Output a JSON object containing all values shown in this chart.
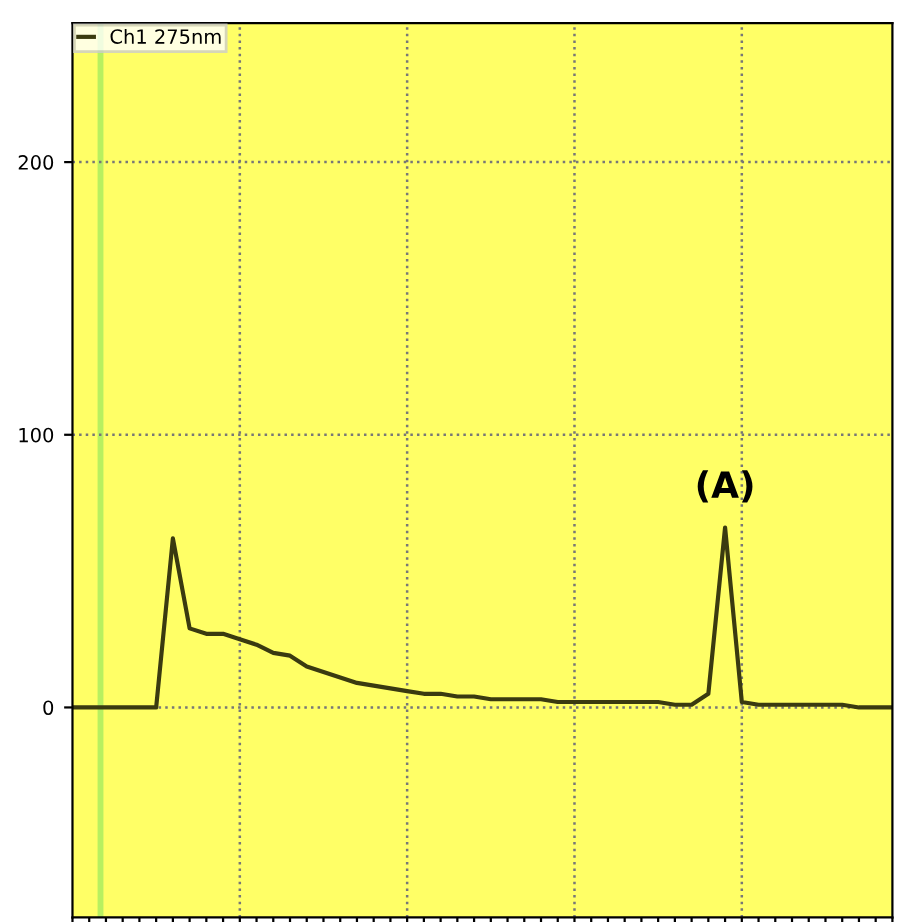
{
  "chart_data": {
    "type": "line",
    "legend": "top left",
    "grid": true,
    "line_style": "solid",
    "marker": "none",
    "categories": [
      null,
      null,
      null,
      null,
      null,
      null,
      null,
      null,
      null,
      null,
      null,
      null,
      null,
      null,
      null,
      null,
      null,
      null,
      null,
      null,
      null,
      null,
      null,
      null,
      null,
      null,
      null,
      null,
      null,
      null,
      null,
      null,
      null,
      null,
      null,
      null,
      null,
      null,
      null,
      null,
      null,
      null,
      null,
      null,
      null,
      null,
      null,
      null,
      null,
      null
    ],
    "series": [
      {
        "name": "Ch1 275nm",
        "color": "#3a3a10",
        "values": [
          0,
          0,
          0,
          0,
          0,
          0,
          62,
          29,
          27,
          27,
          25,
          23,
          20,
          19,
          15,
          13,
          11,
          9,
          8,
          7,
          6,
          5,
          5,
          4,
          4,
          3,
          3,
          3,
          3,
          2,
          2,
          2,
          2,
          2,
          2,
          2,
          1,
          1,
          5,
          66,
          2,
          1,
          1,
          1,
          1,
          1,
          1,
          0,
          0,
          0
        ]
      }
    ],
    "ylim": [
      -77,
      251
    ],
    "yticks": [
      0,
      100,
      200
    ],
    "annotations": [
      {
        "text": "(A)",
        "y": 66
      }
    ]
  }
}
